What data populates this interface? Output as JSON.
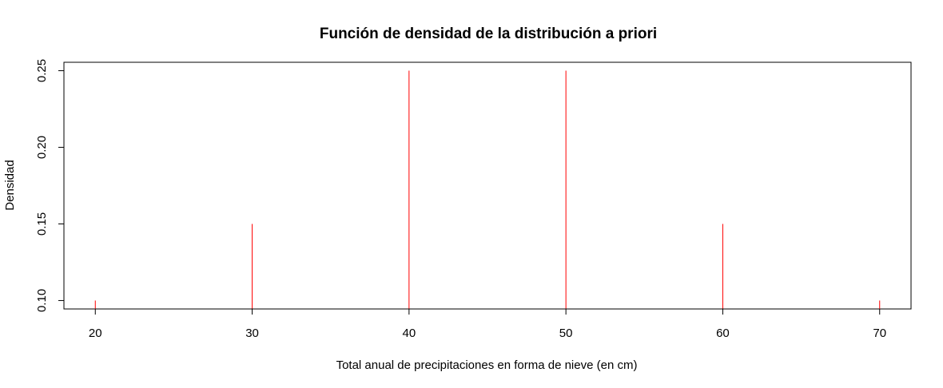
{
  "chart_data": {
    "type": "bar",
    "title": "Función de densidad de la distribución a priori",
    "xlabel": "Total anual de precipitaciones en forma de nieve (en cm)",
    "ylabel": "Densidad",
    "x": [
      20,
      30,
      40,
      50,
      60,
      70
    ],
    "values": [
      0.1,
      0.15,
      0.25,
      0.25,
      0.15,
      0.1
    ],
    "xlim": [
      18,
      72
    ],
    "ylim": [
      0.0945,
      0.2555
    ],
    "xticks": [
      "20",
      "30",
      "40",
      "50",
      "60",
      "70"
    ],
    "yticks": [
      "0.10",
      "0.15",
      "0.20",
      "0.25"
    ],
    "line_color": "#ff0000",
    "baseline_color": "#000000",
    "grid": false,
    "legend": "none"
  }
}
